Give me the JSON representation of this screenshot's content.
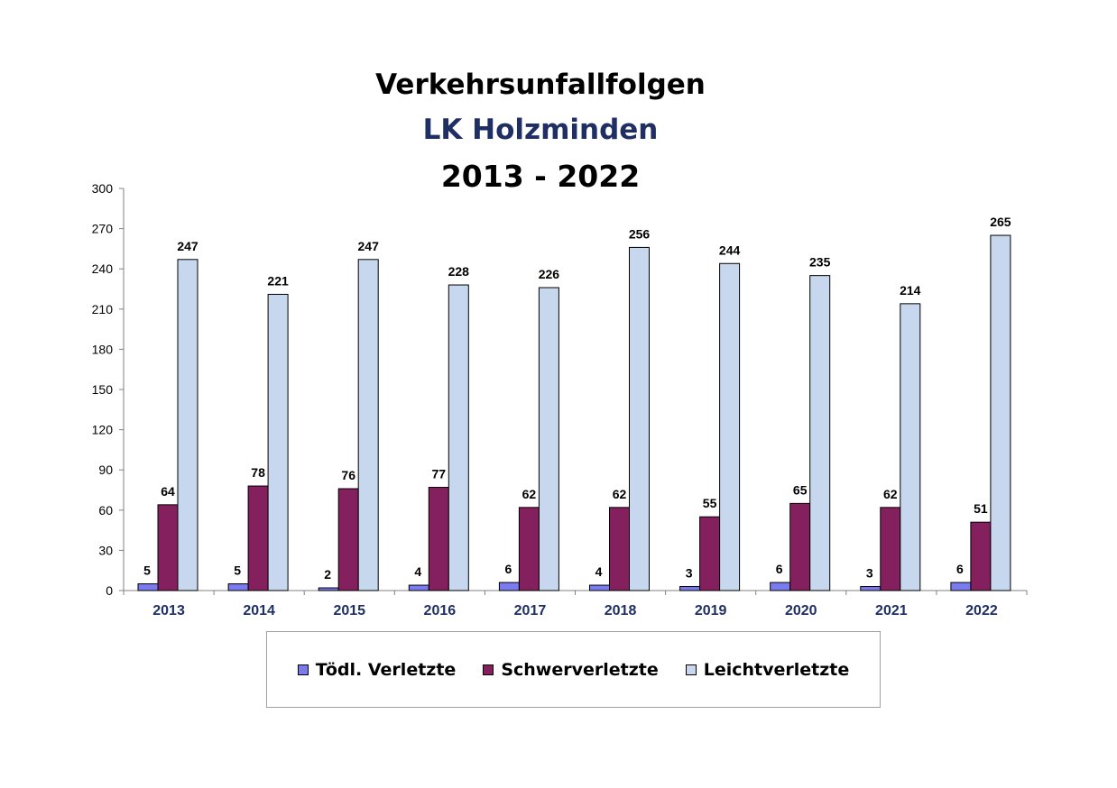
{
  "chart_data": {
    "type": "bar",
    "title": "Verkehrsunfallfolgen",
    "subtitle": "LK Holzminden",
    "period": "2013 - 2022",
    "categories": [
      "2013",
      "2014",
      "2015",
      "2016",
      "2017",
      "2018",
      "2019",
      "2020",
      "2021",
      "2022"
    ],
    "series": [
      {
        "name": "Tödl. Verletzte",
        "color": "#7b7bf0",
        "values": [
          5,
          5,
          2,
          4,
          6,
          4,
          3,
          6,
          3,
          6
        ]
      },
      {
        "name": "Schwerverletzte",
        "color": "#85205e",
        "values": [
          64,
          78,
          76,
          77,
          62,
          62,
          55,
          65,
          62,
          51
        ]
      },
      {
        "name": "Leichtverletzte",
        "color": "#c6d7ee",
        "values": [
          247,
          221,
          247,
          228,
          226,
          256,
          244,
          235,
          214,
          265
        ]
      }
    ],
    "ylim": [
      0,
      300
    ],
    "yticks": [
      0,
      30,
      60,
      90,
      120,
      150,
      180,
      210,
      240,
      270,
      300
    ],
    "legend_position": "bottom",
    "grid": false,
    "title_colors": {
      "subtitle": "#1f2f63",
      "category_labels": "#1f2f63"
    }
  }
}
